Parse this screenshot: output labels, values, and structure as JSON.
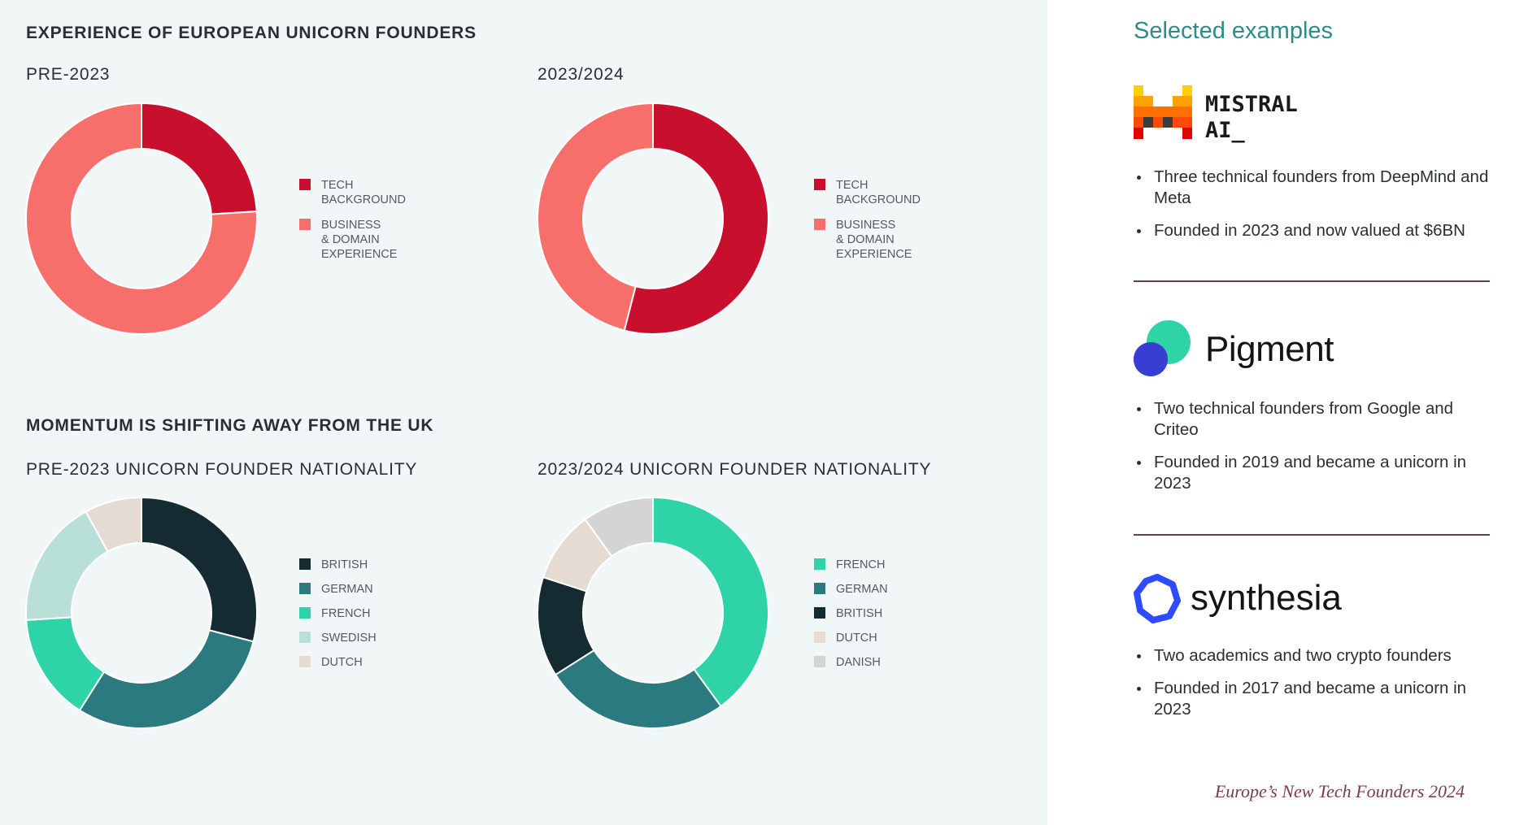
{
  "left": {
    "section1_title": "EXPERIENCE OF EUROPEAN UNICORN FOUNDERS",
    "section2_title": "MOMENTUM IS SHIFTING AWAY FROM THE UK"
  },
  "chart_data": [
    {
      "type": "pie",
      "variant": "donut",
      "title": "PRE-2023",
      "categories": [
        "TECH\nBACKGROUND",
        "BUSINESS\n& DOMAIN\nEXPERIENCE"
      ],
      "values": [
        24,
        76
      ],
      "colors": [
        "#c8102e",
        "#f76f6b"
      ]
    },
    {
      "type": "pie",
      "variant": "donut",
      "title": "2023/2024",
      "categories": [
        "TECH\nBACKGROUND",
        "BUSINESS\n& DOMAIN\nEXPERIENCE"
      ],
      "values": [
        54,
        46
      ],
      "colors": [
        "#c8102e",
        "#f76f6b"
      ]
    },
    {
      "type": "pie",
      "variant": "donut",
      "title": "PRE-2023 UNICORN FOUNDER NATIONALITY",
      "categories": [
        "BRITISH",
        "GERMAN",
        "FRENCH",
        "SWEDISH",
        "DUTCH"
      ],
      "values": [
        29,
        30,
        15,
        18,
        8
      ],
      "colors": [
        "#142c31",
        "#2a7a80",
        "#2ed3a8",
        "#b8e0d8",
        "#e6dbd3"
      ]
    },
    {
      "type": "pie",
      "variant": "donut",
      "title": "2023/2024 UNICORN FOUNDER NATIONALITY",
      "categories": [
        "FRENCH",
        "GERMAN",
        "BRITISH",
        "DUTCH",
        "DANISH"
      ],
      "values": [
        40,
        26,
        14,
        10,
        10
      ],
      "colors": [
        "#2ed3a8",
        "#2a7a80",
        "#142c31",
        "#e6dbd3",
        "#d4d4d6"
      ]
    }
  ],
  "right": {
    "heading": "Selected examples",
    "companies": [
      {
        "name": "MISTRAL\nAI_",
        "logo_icon": "mistral-pixel-m-icon",
        "bullets": [
          "Three technical founders from DeepMind and Meta",
          "Founded in 2023 and now valued at $6BN"
        ]
      },
      {
        "name": "Pigment",
        "logo_icon": "pigment-circles-icon",
        "bullets": [
          "Two technical founders from Google and Criteo",
          "Founded in 2019 and became a unicorn in 2023"
        ]
      },
      {
        "name": "synthesia",
        "logo_icon": "synthesia-ring-icon",
        "bullets": [
          "Two academics and two crypto founders",
          "Founded in 2017 and became a unicorn in 2023"
        ]
      }
    ],
    "footer": "Europe’s New Tech Founders 2024"
  }
}
